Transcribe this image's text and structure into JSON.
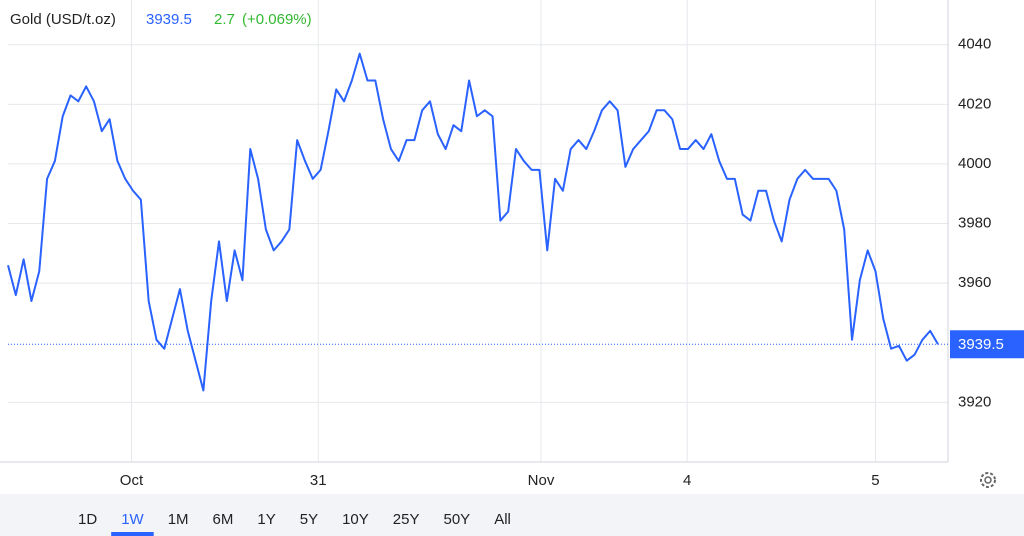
{
  "chart_data": {
    "type": "line",
    "title": "Gold (USD/t.oz)",
    "last_price": 3939.5,
    "change": 2.7,
    "change_pct": "(+0.069%)",
    "x": [
      0,
      1,
      2,
      3,
      4,
      5,
      6,
      7,
      8,
      9,
      10,
      11,
      12,
      13,
      14,
      15,
      16,
      17,
      18,
      19,
      20,
      21,
      22,
      23,
      24,
      25,
      26,
      27,
      28,
      29,
      30,
      31,
      32,
      33,
      34,
      35,
      36,
      37,
      38,
      39,
      40,
      41,
      42,
      43,
      44,
      45,
      46,
      47,
      48,
      49,
      50,
      51,
      52,
      53,
      54,
      55,
      56,
      57,
      58,
      59,
      60,
      61,
      62,
      63,
      64,
      65,
      66,
      67,
      68,
      69,
      70,
      71,
      72,
      73,
      74,
      75,
      76,
      77,
      78,
      79,
      80,
      81,
      82,
      83,
      84,
      85,
      86,
      87,
      88,
      89,
      90,
      91,
      92,
      93,
      94,
      95,
      96,
      97,
      98,
      99,
      100,
      101,
      102,
      103,
      104,
      105,
      106,
      107,
      108,
      109,
      110,
      111,
      112,
      113,
      114,
      115,
      116,
      117,
      118,
      119
    ],
    "series": [
      {
        "name": "Gold",
        "color": "#2962ff",
        "values": [
          3966,
          3956,
          3968,
          3954,
          3964,
          3995,
          4001,
          4016,
          4023,
          4021,
          4026,
          4021,
          4011,
          4015,
          4001,
          3995,
          3991,
          3988,
          3954,
          3941,
          3938,
          3948,
          3958,
          3944,
          3934,
          3924,
          3954,
          3974,
          3954,
          3971,
          3961,
          4005,
          3995,
          3978,
          3971,
          3974,
          3978,
          4008,
          4001,
          3995,
          3998,
          4011,
          4025,
          4021,
          4028,
          4037,
          4028,
          4028,
          4015,
          4005,
          4001,
          4008,
          4008,
          4018,
          4021,
          4010,
          4005,
          4013,
          4011,
          4028,
          4016,
          4018,
          4016,
          3981,
          3984,
          4005,
          4001,
          3998,
          3998,
          3971,
          3995,
          3991,
          4005,
          4008,
          4005,
          4011,
          4018,
          4021,
          4018,
          3999,
          4005,
          4008,
          4011,
          4018,
          4018,
          4015,
          4005,
          4005,
          4008,
          4005,
          4010,
          4001,
          3995,
          3995,
          3983,
          3981,
          3991,
          3991,
          3981,
          3974,
          3988,
          3995,
          3998,
          3995,
          3995,
          3995,
          3991,
          3978,
          3941,
          3961,
          3971,
          3964,
          3948,
          3938,
          3939,
          3934,
          3936,
          3941,
          3944,
          3939.5
        ]
      }
    ],
    "xlim": [
      0,
      119
    ],
    "xticks": [
      {
        "value": 15.8,
        "label": "Oct"
      },
      {
        "value": 39.7,
        "label": "31"
      },
      {
        "value": 68.2,
        "label": "Nov"
      },
      {
        "value": 86.9,
        "label": "4"
      },
      {
        "value": 111,
        "label": "5"
      }
    ],
    "ylim": [
      3900,
      4055
    ],
    "yticks": [
      3920,
      3960,
      3980,
      4000,
      4020,
      4040
    ],
    "grid": true,
    "ranges": [
      "1D",
      "1W",
      "1M",
      "6M",
      "1Y",
      "5Y",
      "10Y",
      "25Y",
      "50Y",
      "All"
    ],
    "selected_range": 1
  }
}
